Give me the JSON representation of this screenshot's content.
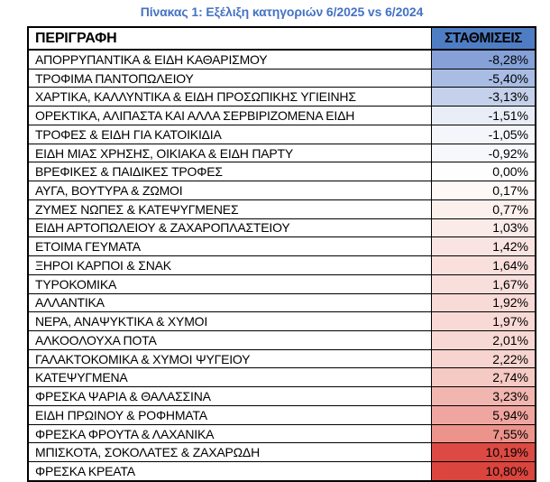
{
  "title": "Πίνακας 1: Εξέλιξη κατηγοριών 6/2025 vs 6/2024",
  "colors": {
    "title_text": "#4472C4",
    "header_fill": "#4E7DC4",
    "header_text": "#000000",
    "grid_border": "#000000",
    "scale_negative_max": "#85A1D8",
    "scale_midpoint": "#FFFFFF",
    "scale_positive_max": "#DA453E"
  },
  "table": {
    "header": {
      "description": "ΠΕΡΙΓΡΑΦΗ",
      "weights": "ΣΤΑΘΜΙΣΕΙΣ"
    },
    "rows": [
      {
        "label": "ΑΠΟΡΡΥΠΑΝΤΙΚΑ & ΕΙΔΗ ΚΑΘΑΡΙΣΜΟΥ",
        "value": "-8,28%",
        "bg": "#85A1D8"
      },
      {
        "label": "ΤΡΟΦΙΜΑ ΠΑΝΤΟΠΩΛΕΙΟΥ",
        "value": "-5,40%",
        "bg": "#A9BDE4"
      },
      {
        "label": "ΧΑΡΤΙΚΑ, ΚΑΛΛΥΝΤΙΚΑ & ΕΙΔΗ ΠΡΟΣΩΠΙΚΗΣ ΥΓΙΕΙΝΗΣ",
        "value": "-3,13%",
        "bg": "#C5D1EB"
      },
      {
        "label": "ΟΡΕΚΤΙΚΑ, ΑΛΙΠΑΣΤΑ ΚΑΙ ΑΛΛΑ ΣΕΡΒΙΡΙΖΟΜΕΝΑ ΕΙΔΗ",
        "value": "-1,51%",
        "bg": "#E8EDF8"
      },
      {
        "label": "ΤΡΟΦΕΣ & ΕΙΔΗ ΓΙΑ ΚΑΤΟΙΚΙΔΙΑ",
        "value": "-1,05%",
        "bg": "#F4F6FB"
      },
      {
        "label": "ΕΙΔΗ ΜΙΑΣ ΧΡΗΣΗΣ, ΟΙΚΙΑΚΑ & ΕΙΔΗ ΠΑΡΤΥ",
        "value": "-0,92%",
        "bg": "#F6F8FC"
      },
      {
        "label": "ΒΡΕΦΙΚΕΣ & ΠΑΙΔΙΚΕΣ ΤΡΟΦΕΣ",
        "value": "0,00%",
        "bg": "#FEFEFE"
      },
      {
        "label": "ΑΥΓΑ, ΒΟΥΤΥΡΑ & ΖΩΜΟΙ",
        "value": "0,17%",
        "bg": "#FEF8F7"
      },
      {
        "label": "ΖΥΜΕΣ ΝΩΠΕΣ & ΚΑΤΕΨΥΓΜΕΝΕΣ",
        "value": "0,77%",
        "bg": "#FCF0ED"
      },
      {
        "label": "ΕΙΔΗ ΑΡΤΟΠΩΛΕΙΟΥ & ΖΑΧΑΡΟΠΛΑΣΤΕΙΟΥ",
        "value": "1,03%",
        "bg": "#FBEBE8"
      },
      {
        "label": "ΕΤΟΙΜΑ ΓΕΥΜΑΤΑ",
        "value": "1,42%",
        "bg": "#FAE4E1"
      },
      {
        "label": "ΞΗΡΟΙ ΚΑΡΠΟΙ & ΣΝΑΚ",
        "value": "1,64%",
        "bg": "#F9E0DC"
      },
      {
        "label": "ΤΥΡΟΚΟΜΙΚΑ",
        "value": "1,67%",
        "bg": "#F9DFDB"
      },
      {
        "label": "ΑΛΛΑΝΤΙΚΑ",
        "value": "1,92%",
        "bg": "#F8DAD6"
      },
      {
        "label": "ΝΕΡΑ, ΑΝΑΨΥΚΤΙΚΑ & ΧΥΜΟΙ",
        "value": "1,97%",
        "bg": "#F8D9D5"
      },
      {
        "label": "ΑΛΚΟΟΛΟΥΧΑ ΠΟΤΑ",
        "value": "2,01%",
        "bg": "#F8D8D4"
      },
      {
        "label": "ΓΑΛΑΚΤΟΚΟΜΙΚΑ & ΧΥΜΟΙ ΨΥΓΕΙΟΥ",
        "value": "2,22%",
        "bg": "#F7D4CF"
      },
      {
        "label": "ΚΑΤΕΨΥΓΜΕΝΑ",
        "value": "2,74%",
        "bg": "#F5CAC4"
      },
      {
        "label": "ΦΡΕΣΚΑ ΨΑΡΙΑ & ΘΑΛΑΣΣΙΝΑ",
        "value": "3,23%",
        "bg": "#F2B6B0"
      },
      {
        "label": "ΕΙΔΗ ΠΡΩΙΝΟΥ & ΡΟΦΗΜΑΤΑ",
        "value": "5,94%",
        "bg": "#F0A6A0"
      },
      {
        "label": "ΦΡΕΣΚΑ ΦΡΟΥΤΑ & ΛΑΧΑΝΙΚΑ",
        "value": "7,55%",
        "bg": "#EC938C"
      },
      {
        "label": "ΜΠΙΣΚΟΤΑ, ΣΟΚΟΛΑΤΕΣ & ΖΑΧΑΡΩΔΗ",
        "value": "10,19%",
        "bg": "#DC4A43"
      },
      {
        "label": "ΦΡΕΣΚΑ ΚΡΕΑΤΑ",
        "value": "10,80%",
        "bg": "#DA453E"
      }
    ]
  },
  "chart_data": {
    "type": "table",
    "title": "Πίνακας 1: Εξέλιξη κατηγοριών 6/2025 vs 6/2024",
    "columns": [
      "ΠΕΡΙΓΡΑΦΗ",
      "ΣΤΑΘΜΙΣΕΙΣ"
    ],
    "value_unit": "percent",
    "value_format": "comma decimal separator, % suffix",
    "rows": [
      [
        "ΑΠΟΡΡΥΠΑΝΤΙΚΑ & ΕΙΔΗ ΚΑΘΑΡΙΣΜΟΥ",
        -8.28
      ],
      [
        "ΤΡΟΦΙΜΑ ΠΑΝΤΟΠΩΛΕΙΟΥ",
        -5.4
      ],
      [
        "ΧΑΡΤΙΚΑ, ΚΑΛΛΥΝΤΙΚΑ & ΕΙΔΗ ΠΡΟΣΩΠΙΚΗΣ ΥΓΙΕΙΝΗΣ",
        -3.13
      ],
      [
        "ΟΡΕΚΤΙΚΑ, ΑΛΙΠΑΣΤΑ ΚΑΙ ΑΛΛΑ ΣΕΡΒΙΡΙΖΟΜΕΝΑ ΕΙΔΗ",
        -1.51
      ],
      [
        "ΤΡΟΦΕΣ & ΕΙΔΗ ΓΙΑ ΚΑΤΟΙΚΙΔΙΑ",
        -1.05
      ],
      [
        "ΕΙΔΗ ΜΙΑΣ ΧΡΗΣΗΣ, ΟΙΚΙΑΚΑ & ΕΙΔΗ ΠΑΡΤΥ",
        -0.92
      ],
      [
        "ΒΡΕΦΙΚΕΣ & ΠΑΙΔΙΚΕΣ ΤΡΟΦΕΣ",
        0.0
      ],
      [
        "ΑΥΓΑ, ΒΟΥΤΥΡΑ & ΖΩΜΟΙ",
        0.17
      ],
      [
        "ΖΥΜΕΣ ΝΩΠΕΣ & ΚΑΤΕΨΥΓΜΕΝΕΣ",
        0.77
      ],
      [
        "ΕΙΔΗ ΑΡΤΟΠΩΛΕΙΟΥ & ΖΑΧΑΡΟΠΛΑΣΤΕΙΟΥ",
        1.03
      ],
      [
        "ΕΤΟΙΜΑ ΓΕΥΜΑΤΑ",
        1.42
      ],
      [
        "ΞΗΡΟΙ ΚΑΡΠΟΙ & ΣΝΑΚ",
        1.64
      ],
      [
        "ΤΥΡΟΚΟΜΙΚΑ",
        1.67
      ],
      [
        "ΑΛΛΑΝΤΙΚΑ",
        1.92
      ],
      [
        "ΝΕΡΑ, ΑΝΑΨΥΚΤΙΚΑ & ΧΥΜΟΙ",
        1.97
      ],
      [
        "ΑΛΚΟΟΛΟΥΧΑ ΠΟΤΑ",
        2.01
      ],
      [
        "ΓΑΛΑΚΤΟΚΟΜΙΚΑ & ΧΥΜΟΙ ΨΥΓΕΙΟΥ",
        2.22
      ],
      [
        "ΚΑΤΕΨΥΓΜΕΝΑ",
        2.74
      ],
      [
        "ΦΡΕΣΚΑ ΨΑΡΙΑ & ΘΑΛΑΣΣΙΝΑ",
        3.23
      ],
      [
        "ΕΙΔΗ ΠΡΩΙΝΟΥ & ΡΟΦΗΜΑΤΑ",
        5.94
      ],
      [
        "ΦΡΕΣΚΑ ΦΡΟΥΤΑ & ΛΑΧΑΝΙΚΑ",
        7.55
      ],
      [
        "ΜΠΙΣΚΟΤΑ, ΣΟΚΟΛΑΤΕΣ & ΖΑΧΑΡΩΔΗ",
        10.19
      ],
      [
        "ΦΡΕΣΚΑ ΚΡΕΑΤΑ",
        10.8
      ]
    ],
    "color_scale": "3-color scale on ΣΤΑΘΜΙΣΕΙΣ column: blue (most negative) → white (zero) → red (most positive)",
    "sort": "ascending by ΣΤΑΘΜΙΣΕΙΣ"
  }
}
